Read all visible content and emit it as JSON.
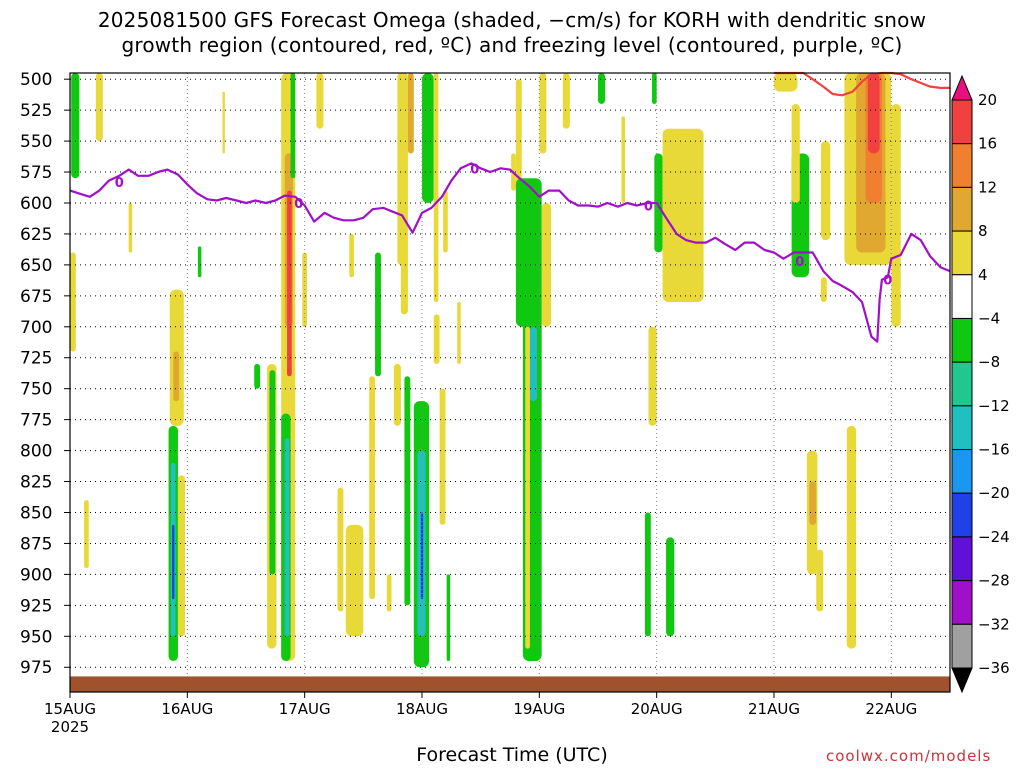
{
  "chart_data": {
    "type": "heatmap",
    "title_line1": "2025081500 GFS Forecast Omega (shaded, −cm/s) for KORH with dendritic snow",
    "title_line2": "growth region (contoured, red, ºC) and freezing level (contoured, purple, ºC)",
    "xlabel": "Forecast Time (UTC)",
    "credit": "coolwx.com/models",
    "y_axis": {
      "levels": [
        500,
        525,
        550,
        575,
        600,
        625,
        650,
        675,
        700,
        725,
        750,
        775,
        800,
        825,
        850,
        875,
        900,
        925,
        950,
        975
      ],
      "range": [
        495,
        995
      ],
      "unit": "hPa",
      "grid": true
    },
    "x_axis": {
      "range_days": [
        15,
        22.5
      ],
      "ticks": [
        {
          "day": 15,
          "label": "15AUG",
          "sub": "2025"
        },
        {
          "day": 16,
          "label": "16AUG",
          "sub": ""
        },
        {
          "day": 17,
          "label": "17AUG",
          "sub": ""
        },
        {
          "day": 18,
          "label": "18AUG",
          "sub": ""
        },
        {
          "day": 19,
          "label": "19AUG",
          "sub": ""
        },
        {
          "day": 20,
          "label": "20AUG",
          "sub": ""
        },
        {
          "day": 21,
          "label": "21AUG",
          "sub": ""
        },
        {
          "day": 22,
          "label": "22AUG",
          "sub": ""
        }
      ],
      "grid": true
    },
    "colorbar": {
      "labels": [
        "20",
        "16",
        "12",
        "8",
        "4",
        "−4",
        "−8",
        "−12",
        "−16",
        "−20",
        "−24",
        "−28",
        "−32",
        "−36"
      ],
      "colors": [
        "#e8107e",
        "#f04040",
        "#f08030",
        "#e0a830",
        "#e8d838",
        "#ffffff",
        "#10c810",
        "#20c890",
        "#20c0c0",
        "#1898f0",
        "#2040e8",
        "#6010d8",
        "#a010c8",
        "#a0a0a0",
        "#000000"
      ]
    },
    "freezing_level": {
      "label": "0",
      "color": "#a010c8",
      "points": [
        [
          15.0,
          590
        ],
        [
          15.1,
          593
        ],
        [
          15.17,
          595
        ],
        [
          15.25,
          590
        ],
        [
          15.33,
          582
        ],
        [
          15.42,
          578
        ],
        [
          15.5,
          573
        ],
        [
          15.58,
          578
        ],
        [
          15.67,
          578
        ],
        [
          15.75,
          575
        ],
        [
          15.83,
          573
        ],
        [
          15.92,
          577
        ],
        [
          16.0,
          585
        ],
        [
          16.08,
          592
        ],
        [
          16.17,
          597
        ],
        [
          16.25,
          598
        ],
        [
          16.33,
          596
        ],
        [
          16.42,
          598
        ],
        [
          16.5,
          600
        ],
        [
          16.58,
          598
        ],
        [
          16.67,
          600
        ],
        [
          16.75,
          598
        ],
        [
          16.83,
          594
        ],
        [
          16.92,
          595
        ],
        [
          17.0,
          602
        ],
        [
          17.08,
          615
        ],
        [
          17.17,
          608
        ],
        [
          17.25,
          612
        ],
        [
          17.33,
          614
        ],
        [
          17.42,
          614
        ],
        [
          17.5,
          612
        ],
        [
          17.58,
          605
        ],
        [
          17.67,
          604
        ],
        [
          17.75,
          607
        ],
        [
          17.83,
          610
        ],
        [
          17.92,
          624
        ],
        [
          18.0,
          608
        ],
        [
          18.08,
          604
        ],
        [
          18.17,
          595
        ],
        [
          18.25,
          582
        ],
        [
          18.33,
          572
        ],
        [
          18.42,
          568
        ],
        [
          18.5,
          572
        ],
        [
          18.58,
          575
        ],
        [
          18.67,
          572
        ],
        [
          18.75,
          573
        ],
        [
          18.83,
          580
        ],
        [
          18.92,
          587
        ],
        [
          19.0,
          595
        ],
        [
          19.08,
          590
        ],
        [
          19.17,
          590
        ],
        [
          19.25,
          598
        ],
        [
          19.33,
          602
        ],
        [
          19.42,
          602
        ],
        [
          19.5,
          603
        ],
        [
          19.58,
          600
        ],
        [
          19.67,
          603
        ],
        [
          19.75,
          600
        ],
        [
          19.83,
          602
        ],
        [
          19.92,
          600
        ],
        [
          20.0,
          600
        ],
        [
          20.08,
          612
        ],
        [
          20.17,
          625
        ],
        [
          20.25,
          630
        ],
        [
          20.33,
          632
        ],
        [
          20.42,
          632
        ],
        [
          20.5,
          628
        ],
        [
          20.58,
          633
        ],
        [
          20.67,
          638
        ],
        [
          20.75,
          632
        ],
        [
          20.83,
          632
        ],
        [
          20.92,
          638
        ],
        [
          21.0,
          640
        ],
        [
          21.08,
          645
        ],
        [
          21.17,
          640
        ],
        [
          21.25,
          640
        ],
        [
          21.33,
          640
        ],
        [
          21.42,
          655
        ],
        [
          21.5,
          663
        ],
        [
          21.58,
          667
        ],
        [
          21.67,
          672
        ],
        [
          21.75,
          680
        ],
        [
          21.83,
          708
        ],
        [
          21.88,
          712
        ],
        [
          21.9,
          678
        ],
        [
          21.92,
          662
        ],
        [
          21.97,
          660
        ],
        [
          22.0,
          645
        ],
        [
          22.08,
          642
        ],
        [
          22.17,
          625
        ],
        [
          22.25,
          630
        ],
        [
          22.33,
          643
        ],
        [
          22.42,
          652
        ],
        [
          22.5,
          655
        ]
      ]
    },
    "dgz_contour": {
      "color": "#f04040",
      "points": [
        [
          21.0,
          490
        ],
        [
          21.08,
          490
        ],
        [
          21.17,
          493
        ],
        [
          21.25,
          494
        ],
        [
          21.33,
          500
        ],
        [
          21.42,
          506
        ],
        [
          21.5,
          512
        ],
        [
          21.58,
          513
        ],
        [
          21.67,
          510
        ],
        [
          21.75,
          502
        ],
        [
          21.83,
          496
        ],
        [
          21.92,
          494
        ],
        [
          22.0,
          494
        ],
        [
          22.08,
          496
        ],
        [
          22.17,
          500
        ],
        [
          22.25,
          503
        ],
        [
          22.33,
          506
        ],
        [
          22.42,
          507
        ],
        [
          22.5,
          507
        ]
      ]
    },
    "omega_cells": [
      {
        "x": [
          15.01,
          15.08
        ],
        "p": [
          495,
          580
        ],
        "v": -6
      },
      {
        "x": [
          15.22,
          15.28
        ],
        "p": [
          495,
          550
        ],
        "v": 4
      },
      {
        "x": [
          15.0,
          15.05
        ],
        "p": [
          640,
          720
        ],
        "v": 4
      },
      {
        "x": [
          15.12,
          15.16
        ],
        "p": [
          840,
          895
        ],
        "v": 4
      },
      {
        "x": [
          15.85,
          15.97
        ],
        "p": [
          670,
          780
        ],
        "v": 4
      },
      {
        "x": [
          15.88,
          15.93
        ],
        "p": [
          720,
          760
        ],
        "v": 8
      },
      {
        "x": [
          15.84,
          15.92
        ],
        "p": [
          780,
          970
        ],
        "v": -6
      },
      {
        "x": [
          15.86,
          15.9
        ],
        "p": [
          810,
          950
        ],
        "v": -14
      },
      {
        "x": [
          15.87,
          15.89
        ],
        "p": [
          860,
          920
        ],
        "v": -20
      },
      {
        "x": [
          15.92,
          15.98
        ],
        "p": [
          820,
          950
        ],
        "v": 4
      },
      {
        "x": [
          16.09,
          16.12
        ],
        "p": [
          635,
          660
        ],
        "v": -6
      },
      {
        "x": [
          15.5,
          15.53
        ],
        "p": [
          600,
          640
        ],
        "v": 4
      },
      {
        "x": [
          16.3,
          16.32
        ],
        "p": [
          510,
          560
        ],
        "v": 4
      },
      {
        "x": [
          16.57,
          16.62
        ],
        "p": [
          730,
          750
        ],
        "v": -6
      },
      {
        "x": [
          16.68,
          16.76
        ],
        "p": [
          730,
          960
        ],
        "v": 4
      },
      {
        "x": [
          16.7,
          16.75
        ],
        "p": [
          735,
          900
        ],
        "v": -6
      },
      {
        "x": [
          16.8,
          16.92
        ],
        "p": [
          495,
          970
        ],
        "v": 4
      },
      {
        "x": [
          16.83,
          16.9
        ],
        "p": [
          560,
          700
        ],
        "v": 8
      },
      {
        "x": [
          16.85,
          16.89
        ],
        "p": [
          590,
          740
        ],
        "v": 16
      },
      {
        "x": [
          16.8,
          16.88
        ],
        "p": [
          770,
          970
        ],
        "v": -6
      },
      {
        "x": [
          16.83,
          16.87
        ],
        "p": [
          790,
          950
        ],
        "v": -14
      },
      {
        "x": [
          16.88,
          16.92
        ],
        "p": [
          495,
          580
        ],
        "v": -6
      },
      {
        "x": [
          16.98,
          17.02
        ],
        "p": [
          640,
          700
        ],
        "v": 4
      },
      {
        "x": [
          17.1,
          17.16
        ],
        "p": [
          495,
          540
        ],
        "v": 4
      },
      {
        "x": [
          17.28,
          17.33
        ],
        "p": [
          830,
          930
        ],
        "v": 4
      },
      {
        "x": [
          17.35,
          17.5
        ],
        "p": [
          860,
          950
        ],
        "v": 4
      },
      {
        "x": [
          17.38,
          17.42
        ],
        "p": [
          625,
          660
        ],
        "v": 4
      },
      {
        "x": [
          17.55,
          17.6
        ],
        "p": [
          740,
          920
        ],
        "v": 4
      },
      {
        "x": [
          17.6,
          17.65
        ],
        "p": [
          640,
          740
        ],
        "v": -6
      },
      {
        "x": [
          17.7,
          17.74
        ],
        "p": [
          900,
          930
        ],
        "v": 4
      },
      {
        "x": [
          17.79,
          17.85
        ],
        "p": [
          495,
          650
        ],
        "v": 4
      },
      {
        "x": [
          17.76,
          17.82
        ],
        "p": [
          730,
          780
        ],
        "v": 4
      },
      {
        "x": [
          17.82,
          17.88
        ],
        "p": [
          495,
          690
        ],
        "v": 4
      },
      {
        "x": [
          17.85,
          17.9
        ],
        "p": [
          740,
          925
        ],
        "v": -6
      },
      {
        "x": [
          17.88,
          17.93
        ],
        "p": [
          495,
          560
        ],
        "v": 8
      },
      {
        "x": [
          17.93,
          18.06
        ],
        "p": [
          760,
          975
        ],
        "v": -6
      },
      {
        "x": [
          17.96,
          18.03
        ],
        "p": [
          800,
          950
        ],
        "v": -14
      },
      {
        "x": [
          17.99,
          18.01
        ],
        "p": [
          850,
          920
        ],
        "v": -20
      },
      {
        "x": [
          18.0,
          18.1
        ],
        "p": [
          495,
          600
        ],
        "v": -6
      },
      {
        "x": [
          18.1,
          18.14
        ],
        "p": [
          495,
          680
        ],
        "v": 4
      },
      {
        "x": [
          18.1,
          18.15
        ],
        "p": [
          690,
          730
        ],
        "v": 4
      },
      {
        "x": [
          18.15,
          18.2
        ],
        "p": [
          750,
          860
        ],
        "v": 4
      },
      {
        "x": [
          18.18,
          18.22
        ],
        "p": [
          590,
          640
        ],
        "v": 4
      },
      {
        "x": [
          18.21,
          18.24
        ],
        "p": [
          900,
          970
        ],
        "v": -6
      },
      {
        "x": [
          18.3,
          18.33
        ],
        "p": [
          680,
          730
        ],
        "v": 4
      },
      {
        "x": [
          18.76,
          18.8
        ],
        "p": [
          560,
          590
        ],
        "v": 4
      },
      {
        "x": [
          18.8,
          18.85
        ],
        "p": [
          500,
          590
        ],
        "v": 4
      },
      {
        "x": [
          18.8,
          19.02
        ],
        "p": [
          580,
          700
        ],
        "v": -6
      },
      {
        "x": [
          18.86,
          19.02
        ],
        "p": [
          620,
          970
        ],
        "v": -6
      },
      {
        "x": [
          18.92,
          18.98
        ],
        "p": [
          700,
          760
        ],
        "v": -12
      },
      {
        "x": [
          18.88,
          18.92
        ],
        "p": [
          700,
          960
        ],
        "v": 4
      },
      {
        "x": [
          19.0,
          19.06
        ],
        "p": [
          495,
          560
        ],
        "v": 4
      },
      {
        "x": [
          19.02,
          19.1
        ],
        "p": [
          600,
          700
        ],
        "v": 4
      },
      {
        "x": [
          19.2,
          19.26
        ],
        "p": [
          495,
          540
        ],
        "v": 4
      },
      {
        "x": [
          19.5,
          19.56
        ],
        "p": [
          495,
          520
        ],
        "v": -6
      },
      {
        "x": [
          19.7,
          19.73
        ],
        "p": [
          530,
          600
        ],
        "v": 4
      },
      {
        "x": [
          19.96,
          20.0
        ],
        "p": [
          495,
          520
        ],
        "v": -6
      },
      {
        "x": [
          19.9,
          19.95
        ],
        "p": [
          850,
          950
        ],
        "v": -6
      },
      {
        "x": [
          19.98,
          20.05
        ],
        "p": [
          560,
          640
        ],
        "v": -6
      },
      {
        "x": [
          19.93,
          20.0
        ],
        "p": [
          700,
          780
        ],
        "v": 4
      },
      {
        "x": [
          20.05,
          20.4
        ],
        "p": [
          540,
          680
        ],
        "v": 4
      },
      {
        "x": [
          20.2,
          20.35
        ],
        "p": [
          580,
          650
        ],
        "v": 4
      },
      {
        "x": [
          20.08,
          20.15
        ],
        "p": [
          870,
          950
        ],
        "v": -6
      },
      {
        "x": [
          21.15,
          21.3
        ],
        "p": [
          560,
          660
        ],
        "v": -6
      },
      {
        "x": [
          21.15,
          21.22
        ],
        "p": [
          520,
          600
        ],
        "v": 4
      },
      {
        "x": [
          21.4,
          21.48
        ],
        "p": [
          550,
          630
        ],
        "v": 4
      },
      {
        "x": [
          21.4,
          21.45
        ],
        "p": [
          660,
          680
        ],
        "v": 4
      },
      {
        "x": [
          21.28,
          21.37
        ],
        "p": [
          800,
          900
        ],
        "v": 4
      },
      {
        "x": [
          21.3,
          21.36
        ],
        "p": [
          825,
          860
        ],
        "v": 8
      },
      {
        "x": [
          21.36,
          21.42
        ],
        "p": [
          880,
          930
        ],
        "v": 4
      },
      {
        "x": [
          21.62,
          21.7
        ],
        "p": [
          780,
          960
        ],
        "v": 4
      },
      {
        "x": [
          21.6,
          22.0
        ],
        "p": [
          495,
          650
        ],
        "v": 4
      },
      {
        "x": [
          21.7,
          21.95
        ],
        "p": [
          495,
          640
        ],
        "v": 8
      },
      {
        "x": [
          21.78,
          21.92
        ],
        "p": [
          495,
          600
        ],
        "v": 12
      },
      {
        "x": [
          21.8,
          21.9
        ],
        "p": [
          495,
          560
        ],
        "v": 16
      },
      {
        "x": [
          22.0,
          22.08
        ],
        "p": [
          520,
          700
        ],
        "v": 4
      },
      {
        "x": [
          21.0,
          21.2
        ],
        "p": [
          495,
          510
        ],
        "v": 4
      }
    ]
  }
}
